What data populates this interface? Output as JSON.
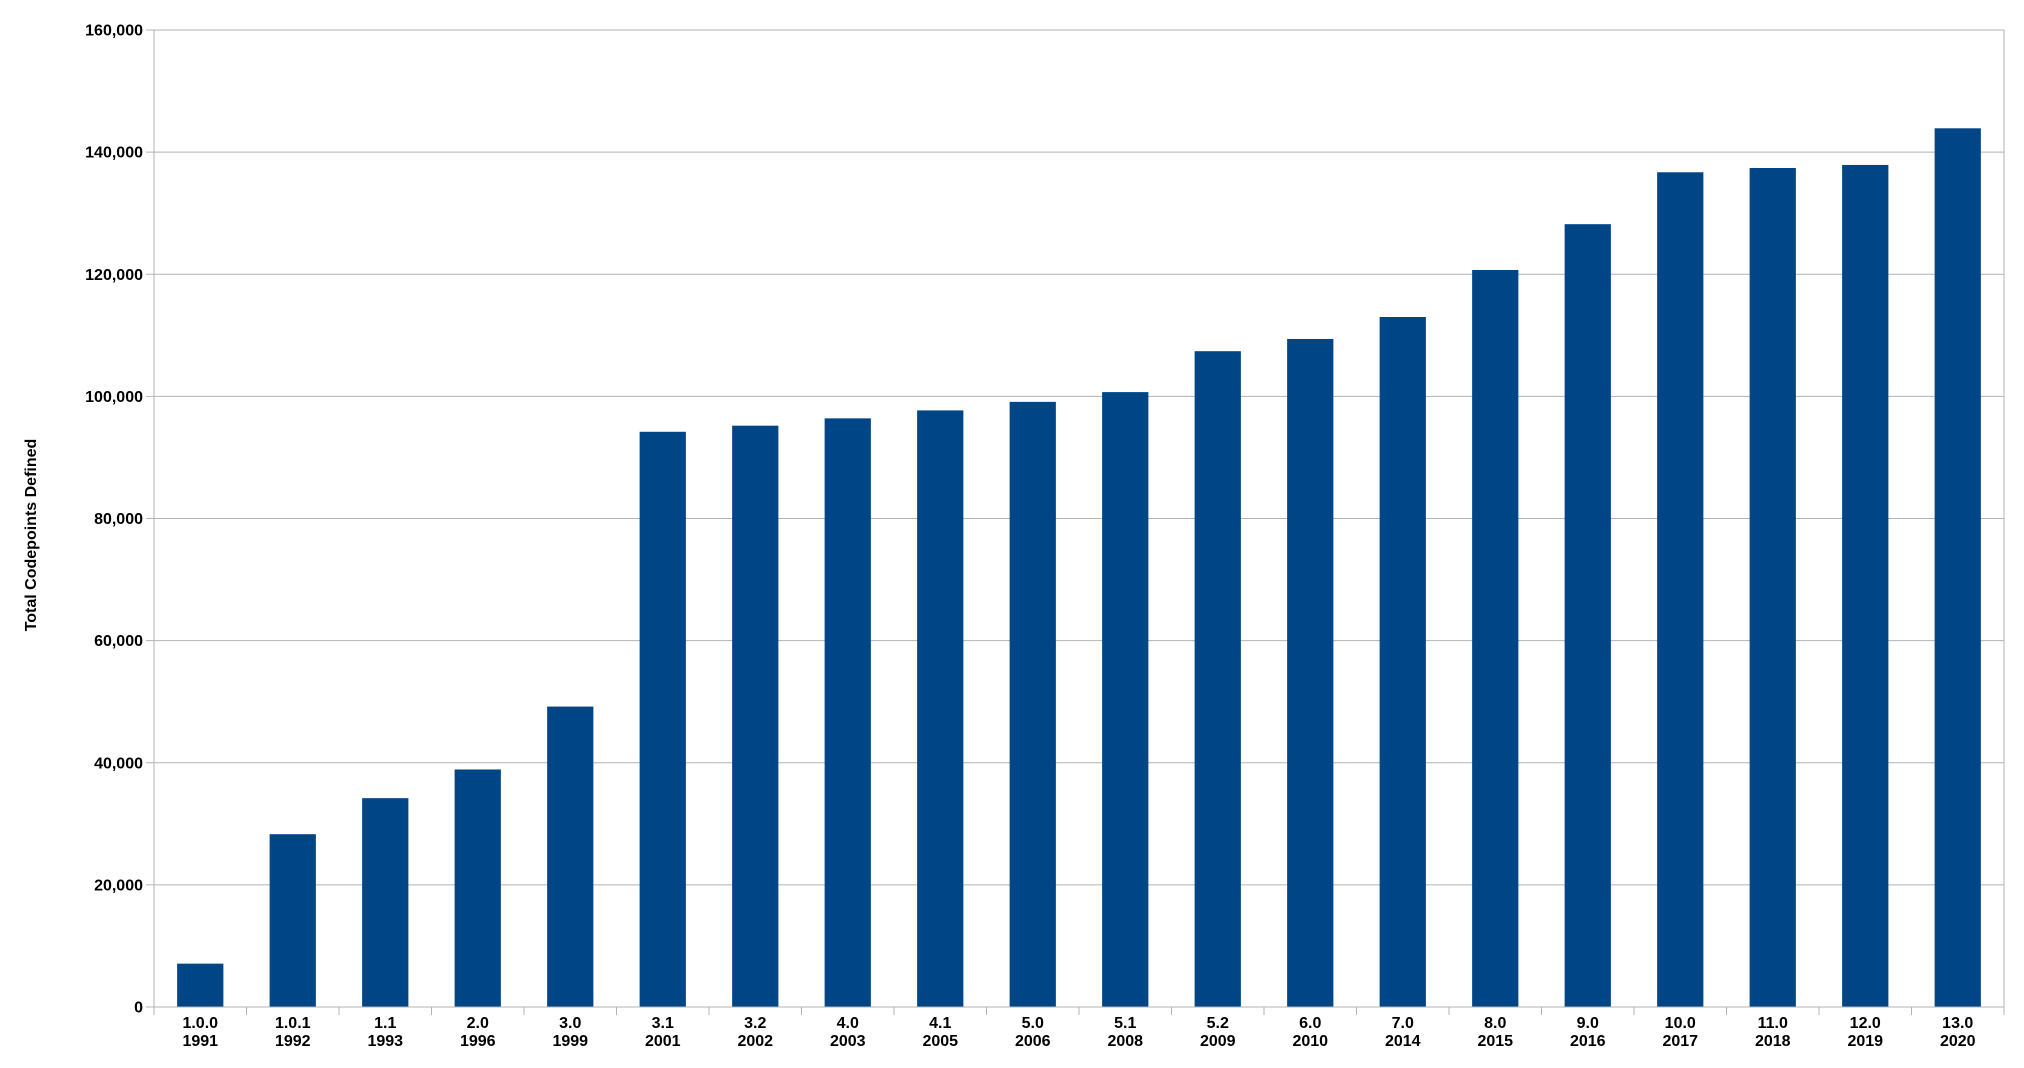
{
  "chart_data": {
    "type": "bar",
    "title": "",
    "xlabel": "",
    "ylabel": "Total Codepoints Defined",
    "ylim": [
      0,
      160000
    ],
    "yticks": [
      0,
      20000,
      40000,
      60000,
      80000,
      100000,
      120000,
      140000,
      160000
    ],
    "ytick_labels": [
      "0",
      "20,000",
      "40,000",
      "60,000",
      "80,000",
      "100,000",
      "120,000",
      "140,000",
      "160,000"
    ],
    "grid": true,
    "legend": "none",
    "bar_color": "#004586",
    "categories": [
      {
        "version": "1.0.0",
        "year": "1991"
      },
      {
        "version": "1.0.1",
        "year": "1992"
      },
      {
        "version": "1.1",
        "year": "1993"
      },
      {
        "version": "2.0",
        "year": "1996"
      },
      {
        "version": "3.0",
        "year": "1999"
      },
      {
        "version": "3.1",
        "year": "2001"
      },
      {
        "version": "3.2",
        "year": "2002"
      },
      {
        "version": "4.0",
        "year": "2003"
      },
      {
        "version": "4.1",
        "year": "2005"
      },
      {
        "version": "5.0",
        "year": "2006"
      },
      {
        "version": "5.1",
        "year": "2008"
      },
      {
        "version": "5.2",
        "year": "2009"
      },
      {
        "version": "6.0",
        "year": "2010"
      },
      {
        "version": "7.0",
        "year": "2014"
      },
      {
        "version": "8.0",
        "year": "2015"
      },
      {
        "version": "9.0",
        "year": "2016"
      },
      {
        "version": "10.0",
        "year": "2017"
      },
      {
        "version": "11.0",
        "year": "2018"
      },
      {
        "version": "12.0",
        "year": "2019"
      },
      {
        "version": "13.0",
        "year": "2020"
      }
    ],
    "values": [
      7100,
      28300,
      34200,
      38900,
      49200,
      94200,
      95200,
      96400,
      97700,
      99100,
      100700,
      107400,
      109400,
      113000,
      120700,
      128200,
      136700,
      137400,
      137900,
      143900
    ]
  }
}
